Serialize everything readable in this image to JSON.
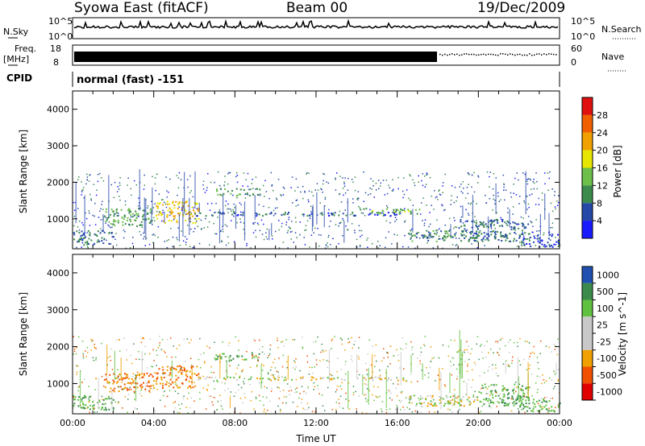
{
  "header": {
    "station": "Syowa East (fitACF)",
    "beam": "Beam 00",
    "date": "19/Dec/2009"
  },
  "strip1": {
    "left_label": "N.Sky",
    "right_label": "N.Search",
    "left_ticks": [
      "10^5",
      "10^0"
    ],
    "right_ticks": [
      "10^5",
      "10^0"
    ]
  },
  "strip2": {
    "left_label_top": "Freq.",
    "left_label_unit": "[MHz]",
    "right_label": "Nave",
    "left_ticks": [
      "18",
      "8"
    ],
    "right_ticks": [
      "60",
      "0"
    ]
  },
  "cpid": {
    "label": "CPID",
    "mode_text": "normal (fast) -151"
  },
  "axes": {
    "ylabel": "Slant Range [km]",
    "xlabel": "Time UT",
    "yticks": [
      "1000",
      "2000",
      "3000",
      "4000"
    ],
    "xticks": [
      "00:00",
      "04:00",
      "08:00",
      "12:00",
      "16:00",
      "20:00",
      "00:00"
    ]
  },
  "colors": {
    "power": [
      "#1a1aff",
      "#2649a8",
      "#3c8a4c",
      "#6dbf4a",
      "#e6e600",
      "#f0a000",
      "#f06000",
      "#e01010"
    ],
    "velocity": [
      "#e00000",
      "#f05000",
      "#f0a000",
      "#c8c8c8",
      "#c8c8c8",
      "#60c040",
      "#3c8a4c",
      "#2050b0"
    ]
  },
  "chart_data": [
    {
      "type": "heatmap",
      "title": "Power",
      "colorbar_label": "Power [dB]",
      "colorbar_ticks": [
        "4",
        "8",
        "12",
        "16",
        "20",
        "24",
        "28"
      ],
      "xlim": [
        0,
        24
      ],
      "ylim": [
        180,
        4500
      ],
      "ylabel": "Slant Range [km]",
      "echo_regions": [
        {
          "t_start": 0.0,
          "t_end": 2.0,
          "r_min": 300,
          "r_max": 700,
          "power": 8
        },
        {
          "t_start": 1.5,
          "t_end": 4.0,
          "r_min": 800,
          "r_max": 1300,
          "power": 12
        },
        {
          "t_start": 4.0,
          "t_end": 6.2,
          "r_min": 900,
          "r_max": 1500,
          "power": 20
        },
        {
          "t_start": 7.0,
          "t_end": 9.2,
          "r_min": 1650,
          "r_max": 1850,
          "power": 12
        },
        {
          "t_start": 6.0,
          "t_end": 16.5,
          "r_min": 1100,
          "r_max": 1200,
          "power": 6
        },
        {
          "t_start": 14.0,
          "t_end": 17.2,
          "r_min": 1150,
          "r_max": 1300,
          "power": 14
        },
        {
          "t_start": 16.5,
          "t_end": 20.0,
          "r_min": 400,
          "r_max": 700,
          "power": 10
        },
        {
          "t_start": 19.0,
          "t_end": 22.5,
          "r_min": 400,
          "r_max": 1000,
          "power": 8
        },
        {
          "t_start": 22.0,
          "t_end": 24.0,
          "r_min": 250,
          "r_max": 600,
          "power": 6
        }
      ]
    },
    {
      "type": "heatmap",
      "title": "Velocity",
      "colorbar_label": "Velocity [m s^-1]",
      "colorbar_ticks": [
        "1000",
        "500",
        "100",
        "25",
        "-25",
        "-100",
        "-500",
        "-1000"
      ],
      "xlim": [
        0,
        24
      ],
      "ylim": [
        180,
        4500
      ],
      "ylabel": "Slant Range [km]",
      "xlabel": "Time UT",
      "echo_regions": [
        {
          "t_start": 0.0,
          "t_end": 2.0,
          "r_min": 300,
          "r_max": 700,
          "velocity": 100
        },
        {
          "t_start": 1.5,
          "t_end": 4.0,
          "r_min": 800,
          "r_max": 1300,
          "velocity": -100
        },
        {
          "t_start": 4.0,
          "t_end": 6.2,
          "r_min": 900,
          "r_max": 1500,
          "velocity": -100
        },
        {
          "t_start": 7.0,
          "t_end": 9.2,
          "r_min": 1650,
          "r_max": 1850,
          "velocity": 100
        },
        {
          "t_start": 6.0,
          "t_end": 16.5,
          "r_min": 1100,
          "r_max": 1200,
          "velocity": 0
        },
        {
          "t_start": 16.5,
          "t_end": 20.0,
          "r_min": 400,
          "r_max": 700,
          "velocity": 0
        },
        {
          "t_start": 20.0,
          "t_end": 22.5,
          "r_min": 400,
          "r_max": 1000,
          "velocity": 100
        },
        {
          "t_start": 22.0,
          "t_end": 24.0,
          "r_min": 250,
          "r_max": 600,
          "velocity": 100
        }
      ]
    }
  ]
}
